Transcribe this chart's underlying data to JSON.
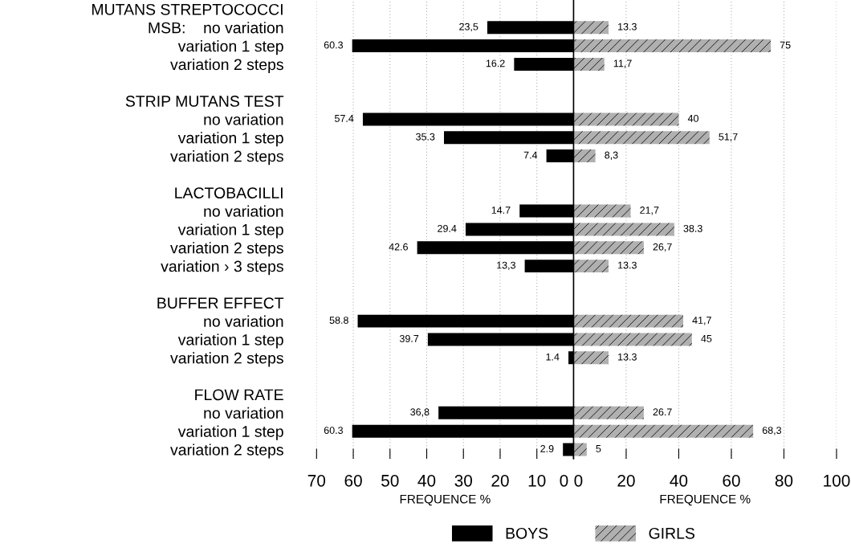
{
  "chart_data": [
    {
      "type": "bar",
      "orientation": "horizontal",
      "xlabel": "FREQUENCE %",
      "xlim": [
        70,
        0
      ],
      "xticks": [
        70,
        60,
        50,
        40,
        30,
        20,
        10,
        0
      ],
      "grid": "x",
      "legend": "bottom",
      "categories": [
        "MUTANS STREPTOCOCCI",
        "MSB:    no variation",
        "variation 1 step",
        "variation 2 steps",
        null,
        "STRIP MUTANS TEST",
        "no variation",
        "variation 1 step",
        "variation 2 steps",
        null,
        "LACTOBACILLI",
        "no variation",
        "variation 1 step",
        "variation 2 steps",
        "variation › 3 steps",
        null,
        "BUFFER EFFECT",
        "no variation",
        "variation 1 step",
        "variation 2 steps",
        null,
        "FLOW RATE",
        "no variation",
        "variation 1 step",
        "variation 2 steps"
      ],
      "series": [
        {
          "name": "BOYS",
          "color": "#000000",
          "values": [
            null,
            23.5,
            60.3,
            16.2,
            null,
            null,
            57.4,
            35.3,
            7.4,
            null,
            null,
            14.7,
            29.4,
            42.6,
            13.3,
            null,
            null,
            58.8,
            39.7,
            1.4,
            null,
            null,
            36.8,
            60.3,
            2.9
          ],
          "value_labels": [
            null,
            "23,5",
            "60.3",
            "16.2",
            null,
            null,
            "57.4",
            "35.3",
            "7.4",
            null,
            null,
            "14.7",
            "29.4",
            "42.6",
            "13,3",
            null,
            null,
            "58.8",
            "39.7",
            "1.4",
            null,
            null,
            "36,8",
            "60.3",
            "2.9"
          ]
        }
      ]
    },
    {
      "type": "bar",
      "orientation": "horizontal",
      "xlabel": "FREQUENCE %",
      "xlim": [
        0,
        100
      ],
      "xticks": [
        0,
        20,
        40,
        60,
        80,
        100
      ],
      "grid": "x",
      "legend": "bottom",
      "tick_labels": "x",
      "categories": [
        null,
        null,
        null,
        null,
        null,
        null,
        null,
        null,
        null,
        null,
        null,
        null,
        null,
        null,
        null,
        null,
        null,
        null,
        null,
        null,
        null,
        null,
        null,
        null,
        null
      ],
      "series": [
        {
          "name": "GIRLS",
          "color": "#b0b0b0",
          "values": [
            null,
            13.3,
            75,
            11.7,
            null,
            null,
            40,
            51.7,
            8.3,
            null,
            null,
            21.7,
            38.3,
            26.7,
            13.3,
            null,
            null,
            41.7,
            45,
            13.3,
            null,
            null,
            26.7,
            68.3,
            5
          ],
          "value_labels": [
            null,
            "13.3",
            "75",
            "11,7",
            null,
            null,
            "40",
            "51,7",
            "8,3",
            null,
            null,
            "21,7",
            "38.3",
            "26,7",
            "13.3",
            null,
            null,
            "41,7",
            "45",
            "13.3",
            null,
            null,
            "26.7",
            "68,3",
            "5"
          ]
        }
      ]
    }
  ]
}
